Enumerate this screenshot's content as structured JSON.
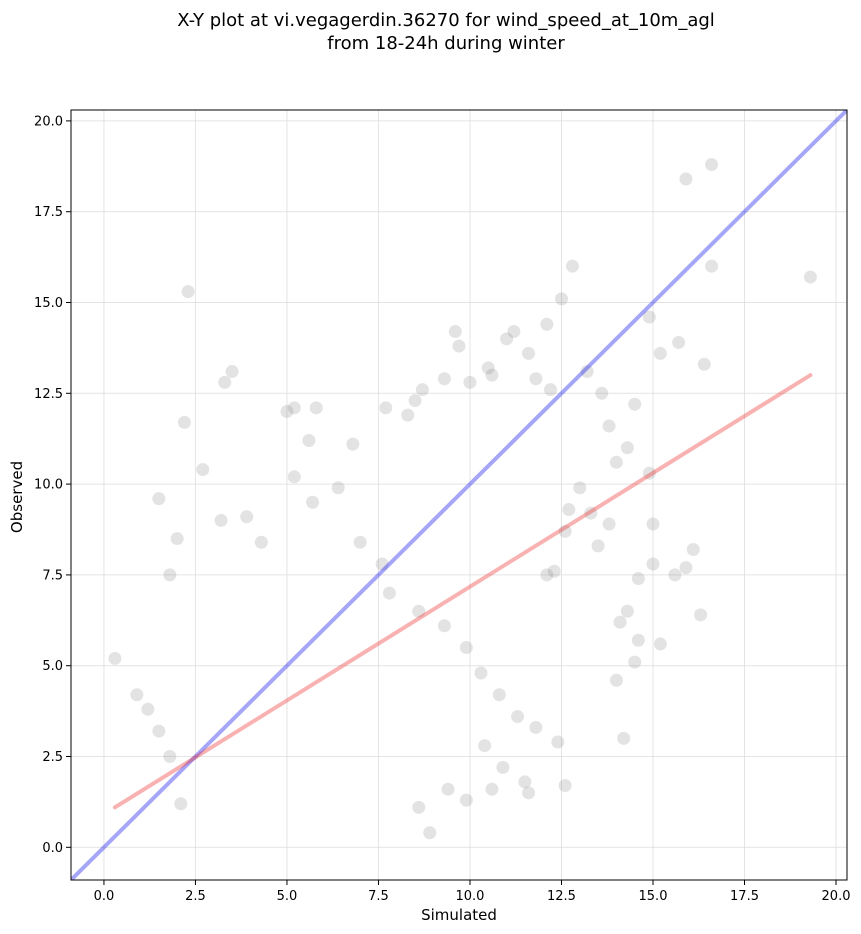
{
  "chart_data": {
    "type": "scatter",
    "title_line1": "X-Y plot at vi.vegagerdin.36270 for wind_speed_at_10m_agl",
    "title_line2": "from 18-24h during winter",
    "xlabel": "Simulated",
    "ylabel": "Observed",
    "xlim": [
      -0.9,
      20.3
    ],
    "ylim": [
      -0.9,
      20.3
    ],
    "xticks": [
      0.0,
      2.5,
      5.0,
      7.5,
      10.0,
      12.5,
      15.0,
      17.5,
      20.0
    ],
    "yticks": [
      0.0,
      2.5,
      5.0,
      7.5,
      10.0,
      12.5,
      15.0,
      17.5,
      20.0
    ],
    "xtick_labels": [
      "0.0",
      "2.5",
      "5.0",
      "7.5",
      "10.0",
      "12.5",
      "15.0",
      "17.5",
      "20.0"
    ],
    "ytick_labels": [
      "0.0",
      "2.5",
      "5.0",
      "7.5",
      "10.0",
      "12.5",
      "15.0",
      "17.5",
      "20.0"
    ],
    "grid": true,
    "colors": {
      "points": "#7f7f7f",
      "identity_line": "#0000ee",
      "fit_line": "#ee2222"
    },
    "identity_line": {
      "x": [
        -0.9,
        20.3
      ],
      "y": [
        -0.9,
        20.3
      ]
    },
    "fit_line": {
      "x": [
        0.3,
        19.3
      ],
      "y": [
        1.1,
        13.0
      ]
    },
    "points": {
      "x": [
        2.3,
        3.5,
        2.7,
        3.3,
        1.5,
        1.8,
        5.0,
        5.2,
        5.6,
        5.8,
        6.8,
        7.7,
        8.3,
        8.5,
        8.7,
        9.3,
        9.6,
        9.7,
        10.0,
        10.5,
        10.6,
        11.0,
        11.2,
        11.6,
        11.8,
        12.1,
        12.2,
        12.5,
        12.8,
        13.2,
        13.6,
        13.8,
        14.3,
        14.5,
        14.9,
        15.2,
        15.7,
        15.9,
        16.4,
        16.6,
        16.6,
        19.3,
        15.6,
        15.9,
        16.1,
        16.3,
        14.9,
        15.0,
        15.0,
        15.2,
        14.6,
        14.0,
        14.1,
        13.3,
        13.0,
        12.7,
        12.1,
        12.3,
        12.6,
        13.5,
        13.8,
        14.0,
        14.6,
        14.5,
        14.2,
        14.3,
        2.2,
        2.0,
        0.3,
        0.9,
        1.2,
        1.5,
        1.8,
        2.1,
        3.2,
        3.9,
        4.3,
        5.2,
        5.7,
        6.4,
        7.0,
        7.6,
        7.8,
        8.6,
        9.3,
        9.9,
        10.3,
        10.8,
        11.3,
        11.8,
        12.4,
        12.6,
        9.9,
        10.6,
        11.5,
        11.6,
        10.9,
        10.4,
        9.4,
        8.9,
        8.6
      ],
      "y": [
        15.3,
        13.1,
        10.4,
        12.8,
        9.6,
        7.5,
        12.0,
        12.1,
        11.2,
        12.1,
        11.1,
        12.1,
        11.9,
        12.3,
        12.6,
        12.9,
        14.2,
        13.8,
        12.8,
        13.2,
        13.0,
        14.0,
        14.2,
        13.6,
        12.9,
        14.4,
        12.6,
        15.1,
        16.0,
        13.1,
        12.5,
        11.6,
        11.0,
        12.2,
        14.6,
        13.6,
        13.9,
        18.4,
        13.3,
        18.8,
        16.0,
        15.7,
        7.5,
        7.7,
        8.2,
        6.4,
        10.3,
        8.9,
        7.8,
        5.6,
        5.7,
        4.6,
        6.2,
        9.2,
        9.9,
        9.3,
        7.5,
        7.6,
        8.7,
        8.3,
        8.9,
        10.6,
        7.4,
        5.1,
        3.0,
        6.5,
        11.7,
        8.5,
        5.2,
        4.2,
        3.8,
        3.2,
        2.5,
        1.2,
        9.0,
        9.1,
        8.4,
        10.2,
        9.5,
        9.9,
        8.4,
        7.8,
        7.0,
        6.5,
        6.1,
        5.5,
        4.8,
        4.2,
        3.6,
        3.3,
        2.9,
        1.7,
        1.3,
        1.6,
        1.8,
        1.5,
        2.2,
        2.8,
        1.6,
        0.4,
        1.1
      ]
    }
  }
}
